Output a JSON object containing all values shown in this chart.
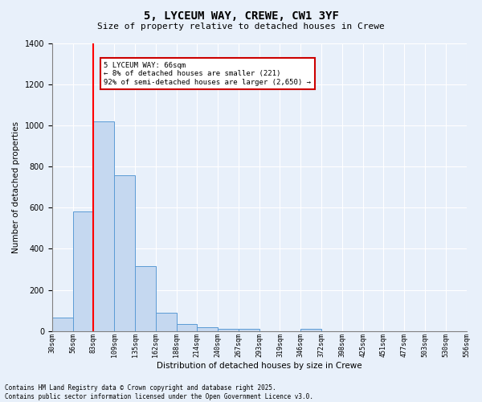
{
  "title": "5, LYCEUM WAY, CREWE, CW1 3YF",
  "subtitle": "Size of property relative to detached houses in Crewe",
  "xlabel": "Distribution of detached houses by size in Crewe",
  "ylabel": "Number of detached properties",
  "bar_values": [
    65,
    580,
    1020,
    760,
    315,
    90,
    35,
    20,
    12,
    10,
    0,
    0,
    12,
    0,
    0,
    0,
    0,
    0,
    0,
    0
  ],
  "categories": [
    "30sqm",
    "56sqm",
    "83sqm",
    "109sqm",
    "135sqm",
    "162sqm",
    "188sqm",
    "214sqm",
    "240sqm",
    "267sqm",
    "293sqm",
    "319sqm",
    "346sqm",
    "372sqm",
    "398sqm",
    "425sqm",
    "451sqm",
    "477sqm",
    "503sqm",
    "530sqm",
    "556sqm"
  ],
  "bar_color": "#c5d8f0",
  "bar_edge_color": "#5b9bd5",
  "red_line_x": 1.5,
  "ylim": [
    0,
    1400
  ],
  "yticks": [
    0,
    200,
    400,
    600,
    800,
    1000,
    1200,
    1400
  ],
  "annotation_text": "5 LYCEUM WAY: 66sqm\n← 8% of detached houses are smaller (221)\n92% of semi-detached houses are larger (2,650) →",
  "annotation_box_color": "#ffffff",
  "annotation_box_edge": "#cc0000",
  "bg_color": "#e8f0fa",
  "grid_color": "#ffffff",
  "footer1": "Contains HM Land Registry data © Crown copyright and database right 2025.",
  "footer2": "Contains public sector information licensed under the Open Government Licence v3.0."
}
